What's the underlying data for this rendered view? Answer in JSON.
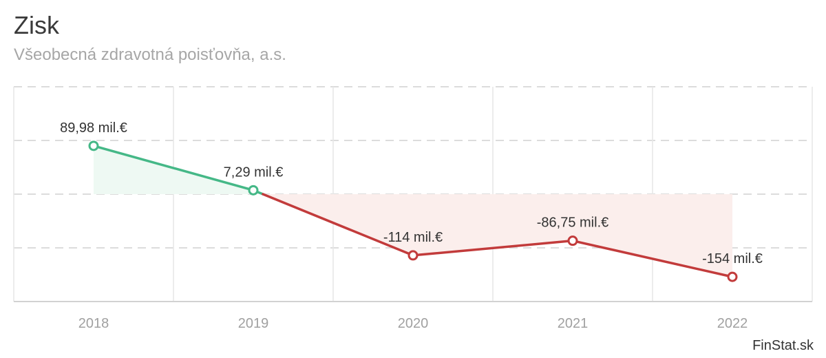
{
  "header": {
    "title": "Zisk",
    "subtitle": "Všeobecná zdravotná poisťovňa, a.s."
  },
  "credit": "FinStat.sk",
  "chart_data": {
    "type": "line",
    "title": "Zisk",
    "subtitle": "Všeobecná zdravotná poisťovňa, a.s.",
    "xlabel": "",
    "ylabel": "",
    "categories": [
      "2018",
      "2019",
      "2020",
      "2021",
      "2022"
    ],
    "series": [
      {
        "values": [
          89.98,
          7.29,
          -114,
          -86.75,
          -154
        ],
        "data_labels": [
          "89,98 mil.€",
          "7,29 mil.€",
          "-114 mil.€",
          "-86,75 mil.€",
          "-154 mil.€"
        ]
      }
    ],
    "unit": "mil.€",
    "ylim": [
      -200,
      200
    ],
    "grid": true,
    "colors": {
      "positive": "#45b887",
      "negative": "#c23b3b",
      "positive_fill": "#eef9f3",
      "negative_fill": "#fbeeec"
    }
  }
}
